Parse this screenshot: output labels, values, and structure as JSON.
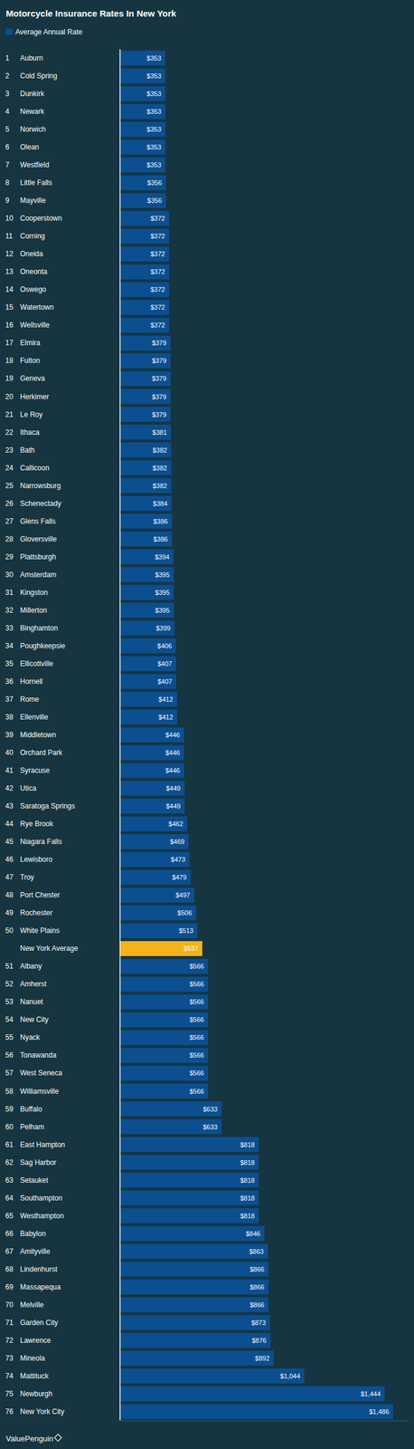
{
  "chart_data": {
    "type": "bar",
    "orientation": "horizontal",
    "title": "Motorcycle Insurance Rates In New York",
    "source": "ValuePenguin",
    "legend": "top-left",
    "data_labels": true,
    "tick_labels": false,
    "grid": false,
    "xlim": [
      128,
      1560
    ],
    "xticks": [],
    "ranks": [
      1,
      2,
      3,
      4,
      5,
      6,
      7,
      8,
      9,
      10,
      11,
      12,
      13,
      14,
      15,
      16,
      17,
      18,
      19,
      20,
      21,
      22,
      23,
      24,
      25,
      26,
      27,
      28,
      29,
      30,
      31,
      32,
      33,
      34,
      35,
      36,
      37,
      38,
      39,
      40,
      41,
      42,
      43,
      44,
      45,
      46,
      47,
      48,
      49,
      50,
      null,
      51,
      52,
      53,
      54,
      55,
      56,
      57,
      58,
      59,
      60,
      61,
      62,
      63,
      64,
      65,
      66,
      67,
      68,
      69,
      70,
      71,
      72,
      73,
      74,
      75,
      76
    ],
    "categories": [
      "Auburn",
      "Cold Spring",
      "Dunkirk",
      "Newark",
      "Norwich",
      "Olean",
      "Westfield",
      "Little Falls",
      "Mayville",
      "Cooperstown",
      "Corning",
      "Oneida",
      "Oneonta",
      "Oswego",
      "Watertown",
      "Wellsville",
      "Elmira",
      "Fulton",
      "Geneva",
      "Herkimer",
      "Le Roy",
      "Ithaca",
      "Bath",
      "Callicoon",
      "Narrowsburg",
      "Schenectady",
      "Glens Falls",
      "Gloversville",
      "Plattsburgh",
      "Amsterdam",
      "Kingston",
      "Millerton",
      "Binghamton",
      "Poughkeepsie",
      "Ellicottville",
      "Hornell",
      "Rome",
      "Ellenville",
      "Middletown",
      "Orchard Park",
      "Syracuse",
      "Utica",
      "Saratoga Springs",
      "Rye Brook",
      "Niagara Falls",
      "Lewisboro",
      "Troy",
      "Port Chester",
      "Rochester",
      "White Plains",
      "New York Average",
      "Albany",
      "Amherst",
      "Nanuet",
      "New City",
      "Nyack",
      "Tonawanda",
      "West Seneca",
      "Williamsville",
      "Buffalo",
      "Pelham",
      "East Hampton",
      "Sag Harbor",
      "Setauket",
      "Southampton",
      "Westhampton",
      "Babylon",
      "Amityville",
      "Lindenhurst",
      "Massapequa",
      "Melville",
      "Garden City",
      "Lawrence",
      "Mineola",
      "Mattituck",
      "Newburgh",
      "New York City"
    ],
    "series": [
      {
        "name": "Average Annual Rate",
        "color": "#0b4f91",
        "values": [
          353,
          353,
          353,
          353,
          353,
          353,
          353,
          356,
          356,
          372,
          372,
          372,
          372,
          372,
          372,
          372,
          379,
          379,
          379,
          379,
          379,
          381,
          382,
          382,
          382,
          384,
          386,
          386,
          394,
          395,
          395,
          395,
          399,
          406,
          407,
          407,
          412,
          412,
          446,
          446,
          446,
          449,
          449,
          462,
          469,
          473,
          479,
          497,
          506,
          513,
          537,
          566,
          566,
          566,
          566,
          566,
          566,
          566,
          566,
          633,
          633,
          818,
          818,
          818,
          818,
          818,
          846,
          863,
          866,
          866,
          866,
          873,
          876,
          892,
          1044,
          1444,
          1486
        ],
        "value_labels": [
          "$353",
          "$353",
          "$353",
          "$353",
          "$353",
          "$353",
          "$353",
          "$356",
          "$356",
          "$372",
          "$372",
          "$372",
          "$372",
          "$372",
          "$372",
          "$372",
          "$379",
          "$379",
          "$379",
          "$379",
          "$379",
          "$381",
          "$382",
          "$382",
          "$382",
          "$384",
          "$386",
          "$386",
          "$394",
          "$395",
          "$395",
          "$395",
          "$399",
          "$406",
          "$407",
          "$407",
          "$412",
          "$412",
          "$446",
          "$446",
          "$446",
          "$449",
          "$449",
          "$462",
          "$469",
          "$473",
          "$479",
          "$497",
          "$506",
          "$513",
          "$537",
          "$566",
          "$566",
          "$566",
          "$566",
          "$566",
          "$566",
          "$566",
          "$566",
          "$633",
          "$633",
          "$818",
          "$818",
          "$818",
          "$818",
          "$818",
          "$846",
          "$863",
          "$866",
          "$866",
          "$866",
          "$873",
          "$876",
          "$892",
          "$1,044",
          "$1,444",
          "$1,486"
        ],
        "colors": [
          "#0b4f91",
          "#0b4f91",
          "#0b4f91",
          "#0b4f91",
          "#0b4f91",
          "#0b4f91",
          "#0b4f91",
          "#0b4f91",
          "#0b4f91",
          "#0b4f91",
          "#0b4f91",
          "#0b4f91",
          "#0b4f91",
          "#0b4f91",
          "#0b4f91",
          "#0b4f91",
          "#0b4f91",
          "#0b4f91",
          "#0b4f91",
          "#0b4f91",
          "#0b4f91",
          "#0b4f91",
          "#0b4f91",
          "#0b4f91",
          "#0b4f91",
          "#0b4f91",
          "#0b4f91",
          "#0b4f91",
          "#0b4f91",
          "#0b4f91",
          "#0b4f91",
          "#0b4f91",
          "#0b4f91",
          "#0b4f91",
          "#0b4f91",
          "#0b4f91",
          "#0b4f91",
          "#0b4f91",
          "#0b4f91",
          "#0b4f91",
          "#0b4f91",
          "#0b4f91",
          "#0b4f91",
          "#0b4f91",
          "#0b4f91",
          "#0b4f91",
          "#0b4f91",
          "#0b4f91",
          "#0b4f91",
          "#0b4f91",
          "#f6b21b",
          "#0b4f91",
          "#0b4f91",
          "#0b4f91",
          "#0b4f91",
          "#0b4f91",
          "#0b4f91",
          "#0b4f91",
          "#0b4f91",
          "#0b4f91",
          "#0b4f91",
          "#0b4f91",
          "#0b4f91",
          "#0b4f91",
          "#0b4f91",
          "#0b4f91",
          "#0b4f91",
          "#0b4f91",
          "#0b4f91",
          "#0b4f91",
          "#0b4f91",
          "#0b4f91",
          "#0b4f91",
          "#0b4f91",
          "#0b4f91",
          "#0b4f91",
          "#0b4f91"
        ]
      }
    ]
  }
}
